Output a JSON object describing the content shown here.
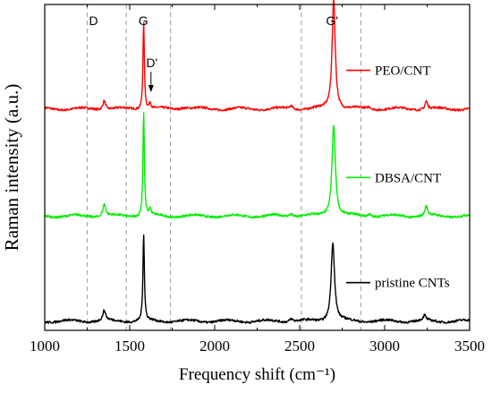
{
  "chart_data": {
    "type": "line",
    "title": "",
    "xlabel": "Frequency shift (cm⁻¹)",
    "ylabel": "Raman intensity (a.u.)",
    "xlim": [
      1000,
      3500
    ],
    "x_ticks": [
      "1000",
      "1500",
      "2000",
      "2500",
      "3000",
      "3500"
    ],
    "y_ticks_visible": false,
    "grid": false,
    "legend": "per-series inline labels on the right",
    "reference_lines": [
      1250,
      1480,
      1740,
      2510,
      2860
    ],
    "band_labels": [
      {
        "text": "D",
        "x": 1350
      },
      {
        "text": "G",
        "x": 1580
      },
      {
        "text": "D'",
        "x": 1620
      },
      {
        "text": "G'",
        "x": 2690
      }
    ],
    "series": [
      {
        "name": "PEO/CNT",
        "color": "#ff0000",
        "baseline": 2.1,
        "peaks": [
          {
            "x": 1350,
            "height": 0.09,
            "width": 20
          },
          {
            "x": 1582,
            "height": 0.85,
            "width": 10
          },
          {
            "x": 1620,
            "height": 0.06,
            "width": 12
          },
          {
            "x": 1820,
            "height": 0.02,
            "width": 60
          },
          {
            "x": 2450,
            "height": 0.03,
            "width": 25
          },
          {
            "x": 2700,
            "height": 1.09,
            "width": 22
          },
          {
            "x": 2910,
            "height": 0.02,
            "width": 20
          },
          {
            "x": 3245,
            "height": 0.08,
            "width": 18
          }
        ]
      },
      {
        "name": "DBSA/CNT",
        "color": "#00ee00",
        "baseline": 1.05,
        "peaks": [
          {
            "x": 1350,
            "height": 0.12,
            "width": 20
          },
          {
            "x": 1582,
            "height": 1.02,
            "width": 10
          },
          {
            "x": 1620,
            "height": 0.07,
            "width": 12
          },
          {
            "x": 2450,
            "height": 0.03,
            "width": 25
          },
          {
            "x": 2700,
            "height": 0.9,
            "width": 24
          },
          {
            "x": 2910,
            "height": 0.03,
            "width": 20
          },
          {
            "x": 3245,
            "height": 0.09,
            "width": 18
          }
        ]
      },
      {
        "name": "pristine CNTs",
        "color": "#000000",
        "baseline": 0.02,
        "peaks": [
          {
            "x": 1350,
            "height": 0.1,
            "width": 20
          },
          {
            "x": 1582,
            "height": 0.85,
            "width": 10
          },
          {
            "x": 2450,
            "height": 0.03,
            "width": 25
          },
          {
            "x": 2695,
            "height": 0.78,
            "width": 24
          },
          {
            "x": 3235,
            "height": 0.05,
            "width": 18
          }
        ]
      }
    ]
  }
}
